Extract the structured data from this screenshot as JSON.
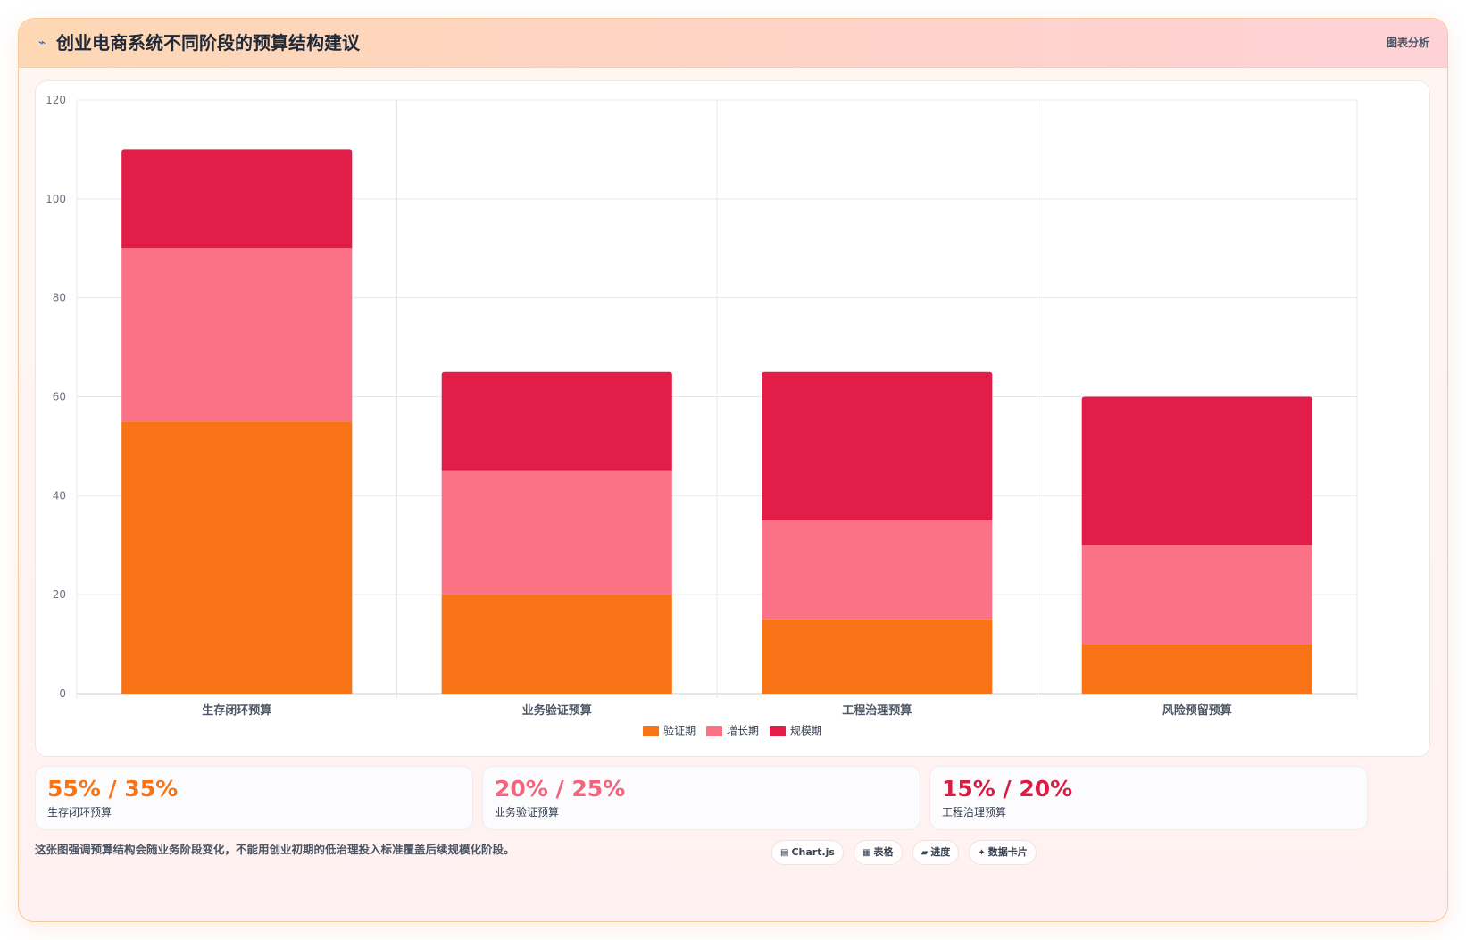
{
  "header": {
    "icon": "chart-icon",
    "title": "创业电商系统不同阶段的预算结构建议",
    "tag": "图表分析"
  },
  "colors": {
    "series": [
      "#f77316",
      "#fb7185",
      "#e11d48"
    ]
  },
  "chart_data": {
    "type": "bar",
    "stacked": true,
    "categories": [
      "生存闭环预算",
      "业务验证预算",
      "工程治理预算",
      "风险预留预算"
    ],
    "series": [
      {
        "name": "验证期",
        "values": [
          55,
          20,
          15,
          10
        ]
      },
      {
        "name": "增长期",
        "values": [
          35,
          25,
          20,
          20
        ]
      },
      {
        "name": "规模期",
        "values": [
          20,
          20,
          30,
          30
        ]
      }
    ],
    "ylim": [
      0,
      120
    ],
    "yticks": [
      0,
      20,
      40,
      60,
      80,
      100,
      120
    ],
    "grid": true,
    "legend": "bottom"
  },
  "stats": [
    {
      "value": "55% / 35%",
      "label": "生存闭环预算",
      "color": "#f77316"
    },
    {
      "value": "20% / 25%",
      "label": "业务验证预算",
      "color": "#f2647c"
    },
    {
      "value": "15% / 20%",
      "label": "工程治理预算",
      "color": "#d81d45"
    }
  ],
  "note": "这张图强调预算结构会随业务阶段变化，不能用创业初期的低治理投入标准覆盖后续规模化阶段。",
  "chips": [
    {
      "icon": "▤",
      "label": "Chart.js"
    },
    {
      "icon": "▦",
      "label": "表格"
    },
    {
      "icon": "▰",
      "label": "进度"
    },
    {
      "icon": "✦",
      "label": "数据卡片"
    }
  ]
}
